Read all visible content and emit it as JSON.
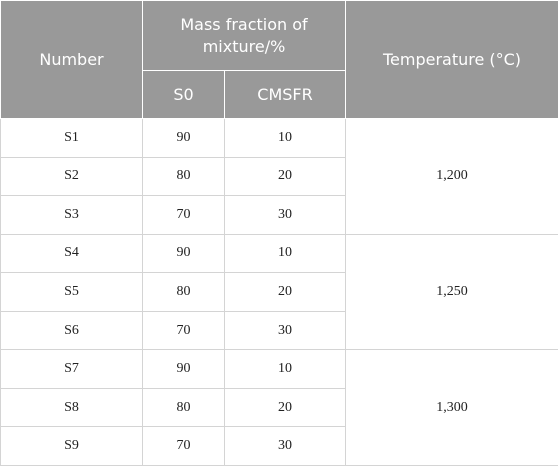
{
  "table": {
    "header": {
      "number": "Number",
      "mass_fraction": "Mass fraction of mixture/%",
      "s0": "S0",
      "cmsfr": "CMSFR",
      "temperature": "Temperature (°C)"
    },
    "rows": [
      [
        "S1",
        "90",
        "10"
      ],
      [
        "S2",
        "80",
        "20"
      ],
      [
        "S3",
        "70",
        "30"
      ],
      [
        "S4",
        "90",
        "10"
      ],
      [
        "S5",
        "80",
        "20"
      ],
      [
        "S6",
        "70",
        "30"
      ],
      [
        "S7",
        "90",
        "10"
      ],
      [
        "S8",
        "80",
        "20"
      ],
      [
        "S9",
        "70",
        "30"
      ]
    ],
    "temperatures": [
      "1,200",
      "1,250",
      "1,300"
    ]
  }
}
